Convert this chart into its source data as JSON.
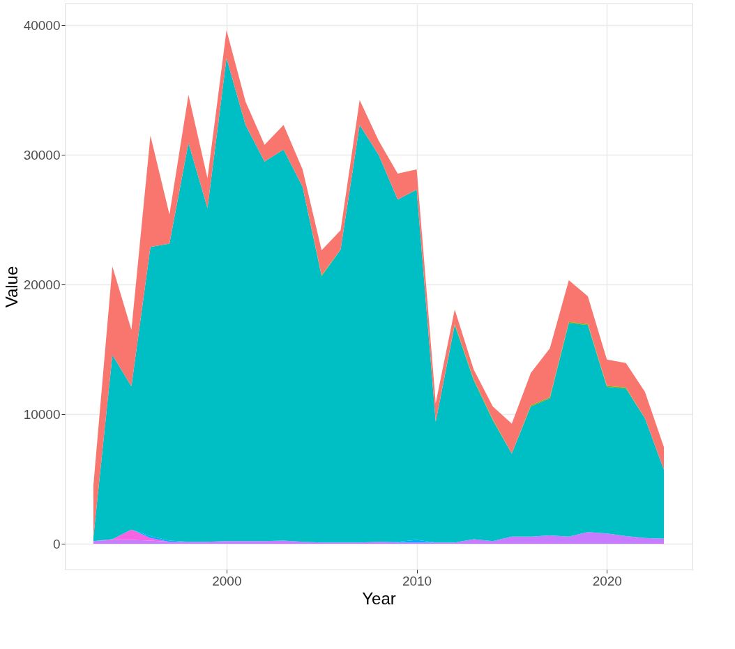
{
  "chart_data": {
    "type": "area",
    "stacked": true,
    "xlabel": "Year",
    "ylabel": "Value",
    "x": [
      1993,
      1994,
      1995,
      1996,
      1997,
      1998,
      1999,
      2000,
      2001,
      2002,
      2003,
      2004,
      2005,
      2006,
      2007,
      2008,
      2009,
      2010,
      2011,
      2012,
      2013,
      2014,
      2015,
      2016,
      2017,
      2018,
      2019,
      2020,
      2021,
      2022,
      2023
    ],
    "series": [
      {
        "color": "#c77cff",
        "values": [
          200,
          300,
          300,
          250,
          150,
          150,
          150,
          200,
          200,
          200,
          250,
          150,
          100,
          100,
          100,
          150,
          100,
          100,
          100,
          100,
          350,
          200,
          550,
          550,
          650,
          550,
          900,
          800,
          600,
          450,
          400
        ]
      },
      {
        "color": "#f564e3",
        "values": [
          0,
          50,
          800,
          200,
          0,
          null,
          null,
          null,
          null,
          null,
          null,
          null,
          null,
          null,
          null,
          null,
          null,
          null,
          null,
          null,
          null,
          null,
          null,
          null,
          null,
          null,
          null,
          null,
          null,
          null,
          null
        ]
      },
      {
        "color": "#00a9ff",
        "values": [
          null,
          null,
          0,
          150,
          100,
          0,
          null,
          null,
          null,
          null,
          null,
          null,
          null,
          null,
          null,
          0,
          50,
          200,
          0,
          null,
          null,
          null,
          null,
          null,
          null,
          null,
          null,
          null,
          null,
          null,
          null
        ]
      },
      {
        "color": "#00bfc4",
        "values": [
          300,
          14210,
          11050,
          22300,
          22910,
          30780,
          25750,
          37270,
          32120,
          29290,
          30170,
          27390,
          20540,
          22600,
          32220,
          29850,
          26410,
          27030,
          9320,
          16780,
          12260,
          9320,
          6400,
          10050,
          10570,
          16490,
          15980,
          11300,
          11390,
          9230,
          5310
        ]
      },
      {
        "color": "#7cae00",
        "values": [
          null,
          null,
          null,
          null,
          null,
          null,
          null,
          null,
          null,
          null,
          null,
          0,
          80,
          0,
          null,
          null,
          null,
          null,
          0,
          80,
          80,
          80,
          0,
          80,
          80,
          80,
          80,
          80,
          80,
          0,
          null
        ]
      },
      {
        "color": "#f8766d",
        "values": [
          4000,
          6840,
          4350,
          8600,
          2240,
          3710,
          2300,
          2160,
          1800,
          1290,
          1900,
          1340,
          1930,
          1490,
          1910,
          1100,
          2000,
          1550,
          1440,
          1110,
          740,
          1000,
          2320,
          2500,
          3780,
          3210,
          2140,
          2030,
          1880,
          2050,
          1750
        ]
      }
    ],
    "xlim": [
      1991.5,
      2024.5
    ],
    "xticks": [
      2000,
      2010,
      2020
    ],
    "ylim": [
      -1985,
      41685
    ],
    "yticks": [
      0,
      10000,
      20000,
      30000,
      40000
    ],
    "grid": true
  }
}
